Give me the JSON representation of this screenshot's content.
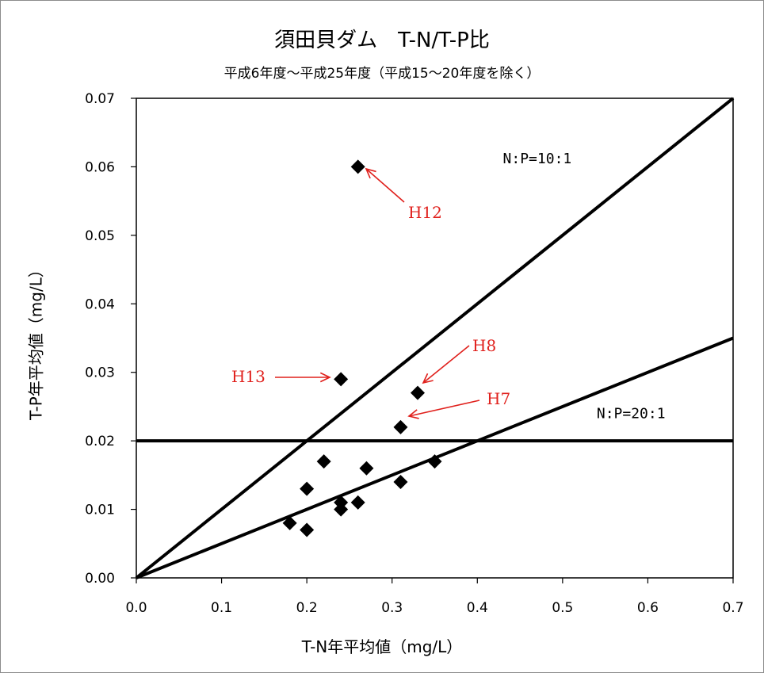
{
  "chart_data": {
    "type": "scatter",
    "title": "須田貝ダム　T-N/T-P比",
    "subtitle": "平成6年度～平成25年度（平成15～20年度を除く）",
    "xlabel": "T-N年平均値（mg/L）",
    "ylabel": "T-P年平均値（mg/L）",
    "xlim": [
      0,
      0.7
    ],
    "ylim": [
      0,
      0.07
    ],
    "x_ticks": [
      "0.0",
      "0.1",
      "0.2",
      "0.3",
      "0.4",
      "0.5",
      "0.6",
      "0.7"
    ],
    "y_ticks": [
      "0.00",
      "0.01",
      "0.02",
      "0.03",
      "0.04",
      "0.05",
      "0.06",
      "0.07"
    ],
    "grid": false,
    "legend": "none",
    "points": [
      {
        "x": 0.26,
        "y": 0.06
      },
      {
        "x": 0.24,
        "y": 0.029
      },
      {
        "x": 0.33,
        "y": 0.027
      },
      {
        "x": 0.31,
        "y": 0.022
      },
      {
        "x": 0.22,
        "y": 0.017
      },
      {
        "x": 0.35,
        "y": 0.017
      },
      {
        "x": 0.27,
        "y": 0.016
      },
      {
        "x": 0.31,
        "y": 0.014
      },
      {
        "x": 0.2,
        "y": 0.013
      },
      {
        "x": 0.24,
        "y": 0.011
      },
      {
        "x": 0.26,
        "y": 0.011
      },
      {
        "x": 0.24,
        "y": 0.01
      },
      {
        "x": 0.18,
        "y": 0.008
      },
      {
        "x": 0.2,
        "y": 0.007
      }
    ],
    "reference_lines": [
      {
        "label": "N:P=10:1",
        "from": [
          0,
          0
        ],
        "to": [
          0.7,
          0.07
        ]
      },
      {
        "label": "N:P=20:1",
        "from": [
          0,
          0
        ],
        "to": [
          0.7,
          0.035
        ]
      },
      {
        "label": "",
        "from": [
          0,
          0.02
        ],
        "to": [
          0.7,
          0.02
        ]
      }
    ],
    "annotations": [
      {
        "text": "H12",
        "x": 0.26,
        "y": 0.06,
        "color": "#e0201c"
      },
      {
        "text": "H13",
        "x": 0.24,
        "y": 0.029,
        "color": "#e0201c"
      },
      {
        "text": "H8",
        "x": 0.33,
        "y": 0.027,
        "color": "#e0201c"
      },
      {
        "text": "H7",
        "x": 0.31,
        "y": 0.022,
        "color": "#e0201c"
      }
    ],
    "marker": "diamond",
    "marker_color": "#000000",
    "annotation_color": "#e0201c"
  }
}
